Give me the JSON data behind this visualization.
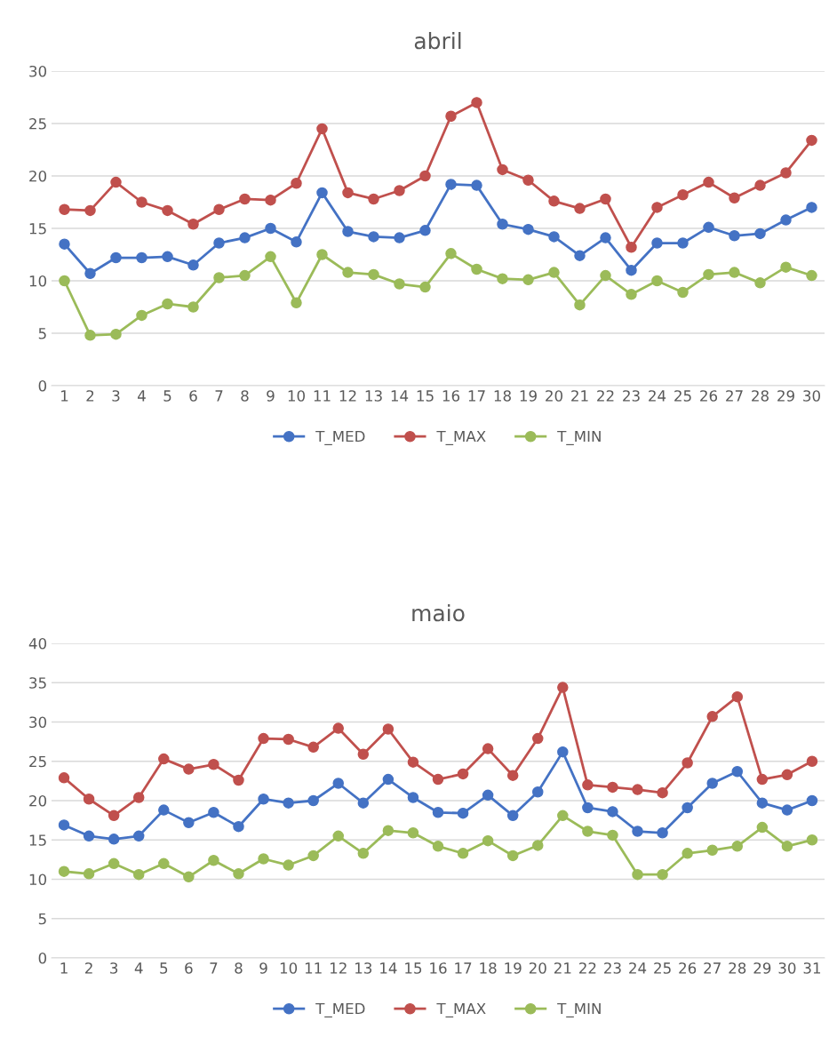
{
  "chart_data": [
    {
      "type": "line",
      "title": "abril",
      "categories": [
        "1",
        "2",
        "3",
        "4",
        "5",
        "6",
        "7",
        "8",
        "9",
        "10",
        "11",
        "12",
        "13",
        "14",
        "15",
        "16",
        "17",
        "18",
        "19",
        "20",
        "21",
        "22",
        "23",
        "24",
        "25",
        "26",
        "27",
        "28",
        "29",
        "30"
      ],
      "ylim": [
        0,
        30
      ],
      "yticks": [
        0,
        5,
        10,
        15,
        20,
        25,
        30
      ],
      "grid": "y",
      "legend": "bottom",
      "marker": "circle",
      "line_style": "solid",
      "series": [
        {
          "name": "T_MED",
          "color": "#4472c4",
          "values": [
            13.5,
            10.7,
            12.2,
            12.2,
            12.3,
            11.5,
            13.6,
            14.1,
            15.0,
            13.7,
            18.4,
            14.7,
            14.2,
            14.1,
            14.8,
            19.2,
            19.1,
            15.4,
            14.9,
            14.2,
            12.4,
            14.1,
            11.0,
            13.6,
            13.6,
            15.1,
            14.3,
            14.5,
            15.8,
            17.0
          ]
        },
        {
          "name": "T_MAX",
          "color": "#c0504d",
          "values": [
            16.8,
            16.7,
            19.4,
            17.5,
            16.7,
            15.4,
            16.8,
            17.8,
            17.7,
            19.3,
            24.5,
            18.4,
            17.8,
            18.6,
            20.0,
            25.7,
            27.0,
            20.6,
            19.6,
            17.6,
            16.9,
            17.8,
            13.2,
            17.0,
            18.2,
            19.4,
            17.9,
            19.1,
            20.3,
            23.4
          ]
        },
        {
          "name": "T_MIN",
          "color": "#9bbb59",
          "values": [
            10.0,
            4.8,
            4.9,
            6.7,
            7.8,
            7.5,
            10.3,
            10.5,
            12.3,
            7.9,
            12.5,
            10.8,
            10.6,
            9.7,
            9.4,
            12.6,
            11.1,
            10.2,
            10.1,
            10.8,
            7.7,
            10.5,
            8.7,
            10.0,
            8.9,
            10.6,
            10.8,
            9.8,
            11.3,
            10.5
          ]
        }
      ]
    },
    {
      "type": "line",
      "title": "maio",
      "categories": [
        "1",
        "2",
        "3",
        "4",
        "5",
        "6",
        "7",
        "8",
        "9",
        "10",
        "11",
        "12",
        "13",
        "14",
        "15",
        "16",
        "17",
        "18",
        "19",
        "20",
        "21",
        "22",
        "23",
        "24",
        "25",
        "26",
        "27",
        "28",
        "29",
        "30",
        "31"
      ],
      "ylim": [
        0,
        40
      ],
      "yticks": [
        0,
        5,
        10,
        15,
        20,
        25,
        30,
        35,
        40
      ],
      "grid": "y",
      "legend": "bottom",
      "marker": "circle",
      "line_style": "solid",
      "series": [
        {
          "name": "T_MED",
          "color": "#4472c4",
          "values": [
            16.9,
            15.5,
            15.1,
            15.5,
            18.8,
            17.2,
            18.5,
            16.7,
            20.2,
            19.7,
            20.0,
            22.2,
            19.7,
            22.7,
            20.4,
            18.5,
            18.4,
            20.7,
            18.1,
            21.1,
            26.2,
            19.1,
            18.6,
            16.1,
            15.9,
            19.1,
            22.2,
            23.7,
            19.7,
            18.8,
            20.0
          ]
        },
        {
          "name": "T_MAX",
          "color": "#c0504d",
          "values": [
            22.9,
            20.2,
            18.1,
            20.4,
            25.3,
            24.0,
            24.6,
            22.6,
            27.9,
            27.8,
            26.8,
            29.2,
            25.9,
            29.1,
            24.9,
            22.7,
            23.4,
            26.6,
            23.2,
            27.9,
            34.4,
            22.0,
            21.7,
            21.4,
            21.0,
            24.8,
            30.7,
            33.2,
            22.7,
            23.3,
            25.0
          ]
        },
        {
          "name": "T_MIN",
          "color": "#9bbb59",
          "values": [
            11.0,
            10.7,
            12.0,
            10.6,
            12.0,
            10.3,
            12.4,
            10.7,
            12.6,
            11.8,
            13.0,
            15.5,
            13.3,
            16.2,
            15.9,
            14.2,
            13.3,
            14.9,
            13.0,
            14.3,
            18.1,
            16.1,
            15.6,
            10.6,
            10.6,
            13.3,
            13.7,
            14.2,
            16.6,
            14.2,
            15.0
          ]
        }
      ]
    }
  ]
}
